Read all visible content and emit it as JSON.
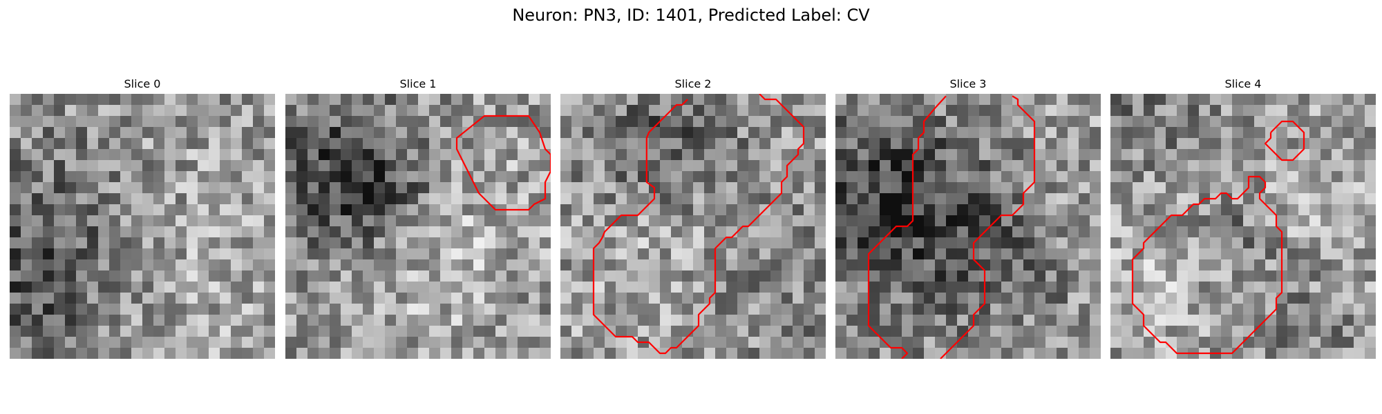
{
  "figure": {
    "title": "Neuron: PN3, ID: 1401, Predicted Label: CV"
  },
  "colors": {
    "contour": "#ff0000",
    "colormap": "gray"
  },
  "slices": [
    {
      "label": "Slice 0",
      "index": 0,
      "contours": []
    },
    {
      "label": "Slice 1",
      "index": 1,
      "contours": [
        [
          [
            16.5,
            3.2
          ],
          [
            18,
            2
          ],
          [
            22,
            2
          ],
          [
            23,
            3.5
          ],
          [
            23.5,
            5
          ],
          [
            24,
            5.5
          ],
          [
            24,
            7
          ],
          [
            23.5,
            8
          ],
          [
            23.5,
            9.5
          ],
          [
            22.5,
            10
          ],
          [
            22,
            10.5
          ],
          [
            19,
            10.5
          ],
          [
            18,
            9.5
          ],
          [
            17.5,
            9
          ],
          [
            17,
            8
          ],
          [
            16.5,
            7
          ],
          [
            16,
            6
          ],
          [
            15.5,
            5
          ],
          [
            15.5,
            4
          ],
          [
            16.5,
            3.2
          ]
        ]
      ]
    },
    {
      "label": "Slice 2",
      "index": 2,
      "contours": [
        [
          [
            11.5,
            0.5
          ],
          [
            11,
            1
          ],
          [
            10.5,
            1
          ],
          [
            10,
            1.5
          ],
          [
            9.5,
            2
          ],
          [
            9,
            2.5
          ],
          [
            8.5,
            3
          ],
          [
            8,
            3.5
          ],
          [
            7.8,
            4
          ],
          [
            7.8,
            6.5
          ],
          [
            7.8,
            8
          ],
          [
            8.5,
            8.5
          ],
          [
            8.5,
            9.5
          ],
          [
            8,
            10
          ],
          [
            7.5,
            10.5
          ],
          [
            7,
            11
          ],
          [
            6,
            11
          ],
          [
            5.5,
            11
          ],
          [
            5,
            11.5
          ],
          [
            4.5,
            12
          ],
          [
            4,
            12.5
          ],
          [
            3.8,
            13
          ],
          [
            3.5,
            13.5
          ],
          [
            3,
            14
          ],
          [
            3,
            15
          ],
          [
            3,
            18
          ],
          [
            3,
            20
          ],
          [
            3.5,
            20.5
          ],
          [
            4,
            21
          ],
          [
            4.5,
            21.5
          ],
          [
            5,
            22
          ],
          [
            6.5,
            22
          ],
          [
            7,
            22.5
          ],
          [
            8,
            22.5
          ],
          [
            8.5,
            23
          ],
          [
            9,
            23.5
          ],
          [
            9.5,
            23.5
          ],
          [
            10,
            23
          ],
          [
            10.5,
            23
          ],
          [
            11,
            22.5
          ],
          [
            11.5,
            22
          ],
          [
            12,
            21.5
          ],
          [
            12.5,
            21
          ],
          [
            12.5,
            20
          ],
          [
            13,
            19.5
          ],
          [
            13.5,
            19
          ],
          [
            13.5,
            18.5
          ],
          [
            14,
            18
          ],
          [
            14,
            15
          ],
          [
            14,
            14
          ],
          [
            14.5,
            13.5
          ],
          [
            15,
            13
          ],
          [
            15.5,
            13
          ],
          [
            16,
            12.5
          ],
          [
            16.5,
            12
          ],
          [
            17,
            12
          ],
          [
            17.5,
            11.5
          ],
          [
            18,
            11
          ],
          [
            18.5,
            10.5
          ],
          [
            19,
            10
          ],
          [
            19.5,
            9.5
          ],
          [
            20,
            9
          ],
          [
            20,
            8
          ],
          [
            20.5,
            7.5
          ],
          [
            20.5,
            6.5
          ],
          [
            21,
            6
          ],
          [
            21.5,
            5.5
          ],
          [
            21.5,
            5
          ],
          [
            22,
            4.5
          ],
          [
            22,
            3
          ],
          [
            21.5,
            2.5
          ],
          [
            21,
            2
          ],
          [
            20.5,
            1.5
          ],
          [
            20,
            1
          ],
          [
            19.5,
            0.5
          ],
          [
            18.5,
            0.5
          ],
          [
            18,
            0
          ]
        ]
      ]
    },
    {
      "label": "Slice 3",
      "index": 3,
      "contours": [
        [
          [
            10,
            0.2
          ],
          [
            9,
            1.3
          ],
          [
            8,
            2.5
          ],
          [
            8,
            3.5
          ],
          [
            7.5,
            4
          ],
          [
            7.5,
            5
          ],
          [
            7,
            5.5
          ],
          [
            7,
            8
          ],
          [
            7,
            10.5
          ],
          [
            7,
            11.5
          ],
          [
            6.5,
            12
          ],
          [
            5.5,
            12
          ],
          [
            5,
            12.5
          ],
          [
            4.5,
            13
          ],
          [
            4,
            13.5
          ],
          [
            3.5,
            14
          ],
          [
            3,
            14.5
          ],
          [
            3,
            17
          ],
          [
            3,
            20
          ],
          [
            3,
            21
          ],
          [
            3.5,
            21.5
          ],
          [
            4,
            22
          ],
          [
            4.5,
            22.5
          ],
          [
            5,
            23
          ],
          [
            6,
            23
          ],
          [
            6.5,
            23.5
          ],
          [
            6,
            24
          ]
        ],
        [
          [
            16,
            0.2
          ],
          [
            16.5,
            0.5
          ],
          [
            16.5,
            1
          ],
          [
            17,
            1.5
          ],
          [
            17.5,
            2
          ],
          [
            18,
            2.5
          ],
          [
            18,
            3.5
          ],
          [
            18,
            5
          ],
          [
            18,
            7
          ],
          [
            18,
            8
          ],
          [
            17.5,
            8.5
          ],
          [
            17,
            9
          ],
          [
            17,
            10
          ],
          [
            16.5,
            10.5
          ],
          [
            16,
            11
          ],
          [
            15,
            11
          ],
          [
            14.5,
            11.5
          ],
          [
            14,
            12
          ],
          [
            13.5,
            12.5
          ],
          [
            13,
            13
          ],
          [
            12.5,
            13.5
          ],
          [
            12.5,
            15
          ],
          [
            13,
            15.5
          ],
          [
            13.5,
            16
          ],
          [
            13.5,
            19
          ],
          [
            13,
            19.5
          ],
          [
            12.5,
            20
          ],
          [
            12.5,
            21
          ],
          [
            12,
            21.5
          ],
          [
            11.5,
            22
          ],
          [
            11,
            22.5
          ],
          [
            10.5,
            23
          ],
          [
            10,
            23.5
          ],
          [
            9.5,
            24
          ]
        ]
      ]
    },
    {
      "label": "Slice 4",
      "index": 4,
      "contours": [
        [
          [
            14.5,
            3.5
          ],
          [
            15,
            3
          ],
          [
            15.5,
            2.5
          ],
          [
            16.5,
            2.5
          ],
          [
            17,
            3
          ],
          [
            17.5,
            3.5
          ],
          [
            17.5,
            4.5
          ],
          [
            17.5,
            5
          ],
          [
            17,
            5.5
          ],
          [
            16.5,
            6
          ],
          [
            15.5,
            6
          ],
          [
            15,
            5.5
          ],
          [
            14.5,
            5
          ],
          [
            14,
            4.5
          ],
          [
            14.5,
            4
          ],
          [
            14.5,
            3.5
          ]
        ],
        [
          [
            12.5,
            8
          ],
          [
            12.5,
            7.5
          ],
          [
            13,
            7.5
          ],
          [
            13.5,
            7.5
          ],
          [
            14,
            8
          ],
          [
            14,
            8.5
          ],
          [
            13.5,
            9
          ],
          [
            13.5,
            9.5
          ],
          [
            14,
            10
          ],
          [
            14.5,
            10.5
          ],
          [
            15,
            11
          ],
          [
            15,
            12
          ],
          [
            15.5,
            12.5
          ],
          [
            15.5,
            14
          ],
          [
            15.5,
            18
          ],
          [
            15,
            18.5
          ],
          [
            15,
            19.5
          ],
          [
            14.5,
            20
          ],
          [
            14,
            20.5
          ],
          [
            13.5,
            21
          ],
          [
            13,
            21.5
          ],
          [
            12.5,
            22
          ],
          [
            12,
            22.5
          ],
          [
            11.5,
            23
          ],
          [
            11,
            23.5
          ],
          [
            8.5,
            23.5
          ],
          [
            6,
            23.5
          ],
          [
            5.5,
            23
          ],
          [
            5,
            22.5
          ],
          [
            4.5,
            22.5
          ],
          [
            4,
            22
          ],
          [
            3.5,
            21.5
          ],
          [
            3,
            21
          ],
          [
            3,
            20
          ],
          [
            2.5,
            19.5
          ],
          [
            2,
            19
          ],
          [
            2,
            17
          ],
          [
            2,
            15
          ],
          [
            2.5,
            14.5
          ],
          [
            3,
            14
          ],
          [
            3,
            13.5
          ],
          [
            3.5,
            13
          ],
          [
            4,
            12.5
          ],
          [
            4.5,
            12
          ],
          [
            5,
            11.5
          ],
          [
            5.5,
            11
          ],
          [
            6.5,
            11
          ],
          [
            7,
            10.5
          ],
          [
            7.5,
            10
          ],
          [
            8,
            10
          ],
          [
            8.5,
            9.5
          ],
          [
            9.5,
            9.5
          ],
          [
            10,
            9
          ],
          [
            10.5,
            9
          ],
          [
            11,
            9.5
          ],
          [
            11.5,
            9.5
          ],
          [
            12,
            9
          ],
          [
            12.5,
            8.5
          ],
          [
            12.5,
            8
          ]
        ]
      ]
    }
  ]
}
